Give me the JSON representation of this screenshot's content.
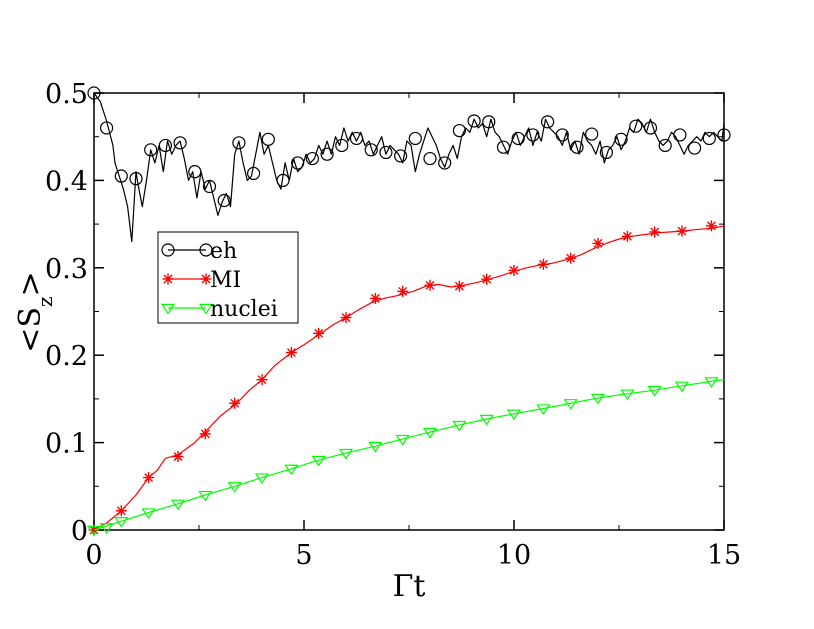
{
  "chart_data": {
    "type": "line",
    "title": "",
    "xlabel": "Γt",
    "ylabel_main": "<S",
    "ylabel_sub": "z",
    "ylabel_close": ">",
    "xlim": [
      0,
      15
    ],
    "ylim": [
      0,
      0.5
    ],
    "x_ticks": [
      0,
      5,
      10,
      15
    ],
    "x_tick_labels": [
      "0",
      "5",
      "10",
      "15"
    ],
    "y_ticks": [
      0,
      0.1,
      0.2,
      0.3,
      0.4,
      0.5
    ],
    "y_tick_labels": [
      "0",
      "0.1",
      "0.2",
      "0.3",
      "0.4",
      "0.5"
    ],
    "grid": false,
    "legend_position": "upper-left inside",
    "series": [
      {
        "name": "eh",
        "color": "#000000",
        "marker": "circle",
        "x": [
          0,
          0.15,
          0.3,
          0.45,
          0.5,
          0.6,
          0.7,
          0.8,
          0.9,
          1.0,
          1.05,
          1.15,
          1.25,
          1.35,
          1.45,
          1.55,
          1.65,
          1.75,
          1.85,
          1.95,
          2.05,
          2.15,
          2.25,
          2.35,
          2.45,
          2.55,
          2.65,
          2.75,
          2.85,
          2.95,
          3.05,
          3.15,
          3.25,
          3.35,
          3.45,
          3.55,
          3.65,
          3.75,
          3.85,
          3.95,
          4.05,
          4.15,
          4.25,
          4.35,
          4.45,
          4.55,
          4.65,
          4.75,
          4.85,
          4.95,
          5.05,
          5.15,
          5.25,
          5.35,
          5.45,
          5.55,
          5.65,
          5.75,
          5.85,
          5.95,
          6.05,
          6.15,
          6.25,
          6.35,
          6.45,
          6.55,
          6.65,
          6.75,
          6.85,
          6.95,
          7.05,
          7.15,
          7.25,
          7.35,
          7.45,
          7.55,
          7.65,
          7.75,
          7.85,
          7.95,
          8.05,
          8.15,
          8.25,
          8.35,
          8.45,
          8.55,
          8.65,
          8.75,
          8.85,
          8.95,
          9.05,
          9.15,
          9.25,
          9.35,
          9.45,
          9.55,
          9.65,
          9.75,
          9.85,
          9.95,
          10.05,
          10.15,
          10.25,
          10.35,
          10.45,
          10.55,
          10.65,
          10.75,
          10.85,
          10.95,
          11.05,
          11.15,
          11.25,
          11.35,
          11.45,
          11.55,
          11.65,
          11.75,
          11.85,
          11.95,
          12.05,
          12.15,
          12.25,
          12.35,
          12.45,
          12.55,
          12.65,
          12.75,
          12.85,
          12.95,
          13.05,
          13.15,
          13.25,
          13.35,
          13.45,
          13.55,
          13.65,
          13.75,
          13.85,
          13.95,
          14.05,
          14.15,
          14.25,
          14.35,
          14.45,
          14.55,
          14.65,
          14.75,
          14.85,
          14.95,
          15.0
        ],
        "y": [
          0.5,
          0.49,
          0.468,
          0.44,
          0.42,
          0.405,
          0.39,
          0.37,
          0.33,
          0.41,
          0.395,
          0.37,
          0.4,
          0.435,
          0.42,
          0.44,
          0.41,
          0.445,
          0.43,
          0.44,
          0.445,
          0.425,
          0.4,
          0.41,
          0.38,
          0.41,
          0.39,
          0.4,
          0.38,
          0.36,
          0.375,
          0.385,
          0.37,
          0.43,
          0.445,
          0.42,
          0.4,
          0.405,
          0.43,
          0.455,
          0.43,
          0.44,
          0.42,
          0.4,
          0.39,
          0.42,
          0.4,
          0.425,
          0.41,
          0.415,
          0.43,
          0.42,
          0.425,
          0.44,
          0.43,
          0.445,
          0.43,
          0.45,
          0.44,
          0.46,
          0.445,
          0.455,
          0.445,
          0.455,
          0.44,
          0.445,
          0.43,
          0.44,
          0.45,
          0.43,
          0.44,
          0.435,
          0.43,
          0.42,
          0.445,
          0.44,
          0.41,
          0.43,
          0.445,
          0.46,
          0.45,
          0.44,
          0.425,
          0.415,
          0.43,
          0.44,
          0.425,
          0.45,
          0.46,
          0.455,
          0.47,
          0.46,
          0.465,
          0.45,
          0.47,
          0.455,
          0.45,
          0.44,
          0.43,
          0.445,
          0.455,
          0.44,
          0.45,
          0.46,
          0.44,
          0.455,
          0.445,
          0.47,
          0.46,
          0.455,
          0.45,
          0.44,
          0.455,
          0.435,
          0.445,
          0.43,
          0.455,
          0.445,
          0.44,
          0.43,
          0.445,
          0.42,
          0.435,
          0.44,
          0.45,
          0.435,
          0.445,
          0.46,
          0.455,
          0.47,
          0.465,
          0.455,
          0.47,
          0.455,
          0.445,
          0.44,
          0.445,
          0.455,
          0.45,
          0.44,
          0.43,
          0.44,
          0.445,
          0.45,
          0.445,
          0.455,
          0.45,
          0.455,
          0.45,
          0.445,
          0.465
        ],
        "marker_x": [
          0,
          0.3,
          0.65,
          1.0,
          1.35,
          1.7,
          2.05,
          2.4,
          2.75,
          3.1,
          3.45,
          3.8,
          4.15,
          4.5,
          4.85,
          5.2,
          5.55,
          5.9,
          6.25,
          6.6,
          6.95,
          7.3,
          7.65,
          8.0,
          8.35,
          8.7,
          9.05,
          9.4,
          9.75,
          10.1,
          10.45,
          10.8,
          11.15,
          11.5,
          11.85,
          12.2,
          12.55,
          12.9,
          13.25,
          13.6,
          13.95,
          14.3,
          14.65,
          15.0
        ],
        "marker_y": [
          0.5,
          0.46,
          0.405,
          0.402,
          0.435,
          0.44,
          0.443,
          0.41,
          0.393,
          0.377,
          0.443,
          0.408,
          0.447,
          0.4,
          0.42,
          0.425,
          0.43,
          0.44,
          0.448,
          0.435,
          0.432,
          0.428,
          0.448,
          0.425,
          0.42,
          0.457,
          0.468,
          0.467,
          0.438,
          0.448,
          0.452,
          0.467,
          0.452,
          0.438,
          0.453,
          0.432,
          0.447,
          0.462,
          0.46,
          0.44,
          0.452,
          0.437,
          0.448,
          0.452
        ]
      },
      {
        "name": "MI",
        "color": "#ff0000",
        "marker": "asterisk",
        "x": [
          0,
          0.3,
          0.65,
          1.0,
          1.3,
          1.5,
          1.7,
          2.0,
          2.4,
          2.7,
          3.0,
          3.4,
          3.7,
          4.0,
          4.3,
          4.7,
          5.0,
          5.4,
          5.7,
          6.0,
          6.3,
          6.6,
          6.9,
          7.2,
          7.6,
          7.9,
          8.2,
          8.5,
          8.8,
          9.1,
          9.4,
          9.7,
          10.0,
          10.3,
          10.6,
          10.9,
          11.3,
          11.6,
          11.9,
          12.2,
          12.5,
          12.8,
          13.1,
          13.4,
          13.7,
          14.0,
          14.4,
          14.7,
          15.0
        ],
        "y": [
          0,
          0.008,
          0.022,
          0.04,
          0.06,
          0.068,
          0.082,
          0.086,
          0.1,
          0.115,
          0.13,
          0.145,
          0.16,
          0.172,
          0.188,
          0.203,
          0.212,
          0.225,
          0.235,
          0.243,
          0.252,
          0.26,
          0.265,
          0.268,
          0.273,
          0.279,
          0.281,
          0.278,
          0.28,
          0.283,
          0.287,
          0.291,
          0.296,
          0.3,
          0.303,
          0.305,
          0.31,
          0.315,
          0.322,
          0.328,
          0.333,
          0.336,
          0.338,
          0.34,
          0.341,
          0.342,
          0.344,
          0.345,
          0.348
        ],
        "marker_x": [
          0,
          0.65,
          1.3,
          2.0,
          2.65,
          3.35,
          4.0,
          4.7,
          5.35,
          6.0,
          6.7,
          7.35,
          8.0,
          8.7,
          9.35,
          10.0,
          10.7,
          11.35,
          12.0,
          12.7,
          13.35,
          14.0,
          14.7
        ],
        "marker_y": [
          0,
          0.022,
          0.06,
          0.084,
          0.11,
          0.145,
          0.172,
          0.203,
          0.225,
          0.243,
          0.265,
          0.273,
          0.28,
          0.279,
          0.287,
          0.297,
          0.304,
          0.311,
          0.328,
          0.336,
          0.341,
          0.342,
          0.348
        ]
      },
      {
        "name": "nuclei",
        "color": "#00ff00",
        "marker": "triangle-down",
        "x": [
          0,
          0.65,
          1.3,
          2.0,
          2.65,
          3.35,
          4.0,
          4.7,
          5.35,
          6.0,
          6.7,
          7.35,
          8.0,
          8.7,
          9.35,
          10.0,
          10.7,
          11.35,
          12.0,
          12.7,
          13.35,
          14.0,
          14.7,
          15.0
        ],
        "y": [
          0,
          0.01,
          0.02,
          0.03,
          0.04,
          0.05,
          0.06,
          0.07,
          0.08,
          0.088,
          0.096,
          0.104,
          0.112,
          0.12,
          0.127,
          0.133,
          0.139,
          0.145,
          0.151,
          0.156,
          0.16,
          0.165,
          0.17,
          0.172
        ],
        "marker_x": [
          0,
          0.3,
          0.65,
          1.3,
          2.0,
          2.65,
          3.35,
          4.0,
          4.7,
          5.35,
          6.0,
          6.7,
          7.35,
          8.0,
          8.7,
          9.35,
          10.0,
          10.7,
          11.35,
          12.0,
          12.7,
          13.35,
          14.0,
          14.7
        ],
        "marker_y": [
          0,
          0.003,
          0.01,
          0.02,
          0.03,
          0.04,
          0.05,
          0.06,
          0.07,
          0.08,
          0.088,
          0.096,
          0.104,
          0.112,
          0.12,
          0.127,
          0.133,
          0.139,
          0.145,
          0.151,
          0.156,
          0.16,
          0.165,
          0.17
        ]
      }
    ]
  }
}
